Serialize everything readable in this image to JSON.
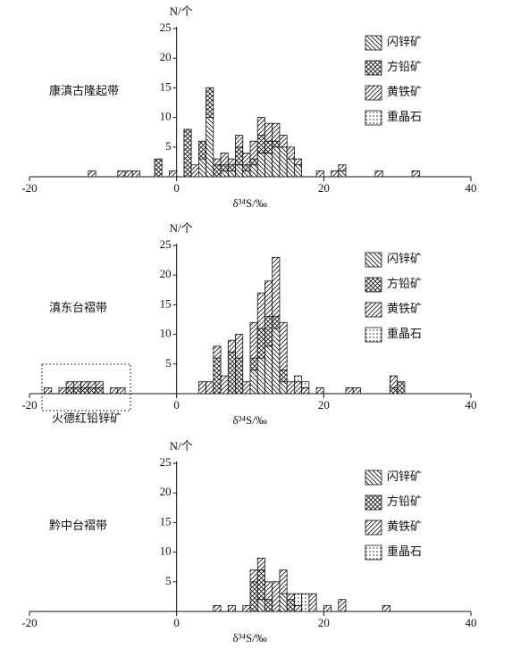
{
  "chart_data": [
    {
      "type": "bar",
      "label": "康滇古隆起带",
      "y_label": "N/个",
      "x_label": "δ³⁴S/‰",
      "xlim": [
        -20,
        40
      ],
      "xticks": [
        -20,
        0,
        20,
        40
      ],
      "ylim": [
        0,
        25
      ],
      "yticks": [
        5,
        10,
        15,
        20,
        25
      ],
      "x": [
        -12,
        -8,
        -7,
        -6,
        -3,
        -1,
        1,
        2,
        3,
        4,
        5,
        6,
        7,
        8,
        9,
        10,
        11,
        12,
        13,
        14,
        15,
        16,
        19,
        21,
        22,
        27,
        32
      ],
      "series": [
        {
          "name": "闪锌矿",
          "pattern": "back-diagonal",
          "values": [
            0,
            0,
            0,
            0,
            0,
            0,
            0,
            0,
            3,
            10,
            0,
            1,
            1,
            2,
            1,
            2,
            4,
            4,
            5,
            5,
            3,
            2,
            0,
            0,
            1,
            0,
            0
          ]
        },
        {
          "name": "方铅矿",
          "pattern": "cross",
          "values": [
            0,
            0,
            0,
            0,
            3,
            0,
            8,
            0,
            3,
            5,
            2,
            1,
            1,
            3,
            1,
            1,
            3,
            2,
            1,
            0,
            0,
            0,
            0,
            0,
            0,
            0,
            0
          ]
        },
        {
          "name": "黄铁矿",
          "pattern": "diagonal",
          "values": [
            1,
            1,
            1,
            1,
            0,
            1,
            0,
            2,
            0,
            0,
            1,
            2,
            1,
            2,
            2,
            3,
            3,
            3,
            3,
            2,
            2,
            1,
            1,
            1,
            1,
            1,
            1
          ]
        },
        {
          "name": "重晶石",
          "pattern": "dots",
          "values": [
            0,
            0,
            0,
            0,
            0,
            0,
            0,
            0,
            0,
            0,
            0,
            0,
            0,
            0,
            0,
            0,
            0,
            0,
            0,
            0,
            0,
            0,
            0,
            0,
            0,
            0,
            0
          ]
        }
      ]
    },
    {
      "type": "bar",
      "label": "滇东台褶带",
      "y_label": "N/个",
      "x_label": "δ³⁴S/‰",
      "annotation": "火德红铅锌矿",
      "xlim": [
        -20,
        40
      ],
      "xticks": [
        -20,
        0,
        20,
        40
      ],
      "ylim": [
        0,
        25
      ],
      "yticks": [
        5,
        10,
        15,
        20,
        25
      ],
      "x": [
        -18,
        -16,
        -15,
        -14,
        -13,
        -12,
        -11,
        -9,
        -8,
        3,
        4,
        5,
        6,
        7,
        8,
        9,
        10,
        11,
        12,
        13,
        14,
        15,
        16,
        17,
        19,
        23,
        24,
        29,
        30
      ],
      "series": [
        {
          "name": "闪锌矿",
          "pattern": "back-diagonal",
          "values": [
            0,
            0,
            0,
            0,
            0,
            0,
            0,
            0,
            0,
            0,
            0,
            0,
            0,
            0,
            0,
            0,
            4,
            6,
            8,
            11,
            2,
            0,
            0,
            0,
            0,
            0,
            0,
            0,
            0
          ]
        },
        {
          "name": "方铅矿",
          "pattern": "cross",
          "values": [
            0,
            0,
            1,
            1,
            1,
            1,
            1,
            0,
            0,
            0,
            0,
            6,
            0,
            7,
            6,
            0,
            2,
            5,
            5,
            2,
            2,
            0,
            0,
            0,
            0,
            0,
            0,
            1,
            2
          ]
        },
        {
          "name": "黄铁矿",
          "pattern": "diagonal",
          "values": [
            1,
            1,
            1,
            1,
            1,
            1,
            1,
            1,
            1,
            2,
            2,
            2,
            3,
            2,
            4,
            2,
            6,
            6,
            6,
            10,
            8,
            2,
            2,
            1,
            1,
            1,
            1,
            2,
            0
          ]
        },
        {
          "name": "重晶石",
          "pattern": "dots",
          "values": [
            0,
            0,
            0,
            0,
            0,
            0,
            0,
            0,
            0,
            0,
            0,
            0,
            0,
            0,
            0,
            0,
            0,
            0,
            0,
            0,
            0,
            0,
            1,
            1,
            0,
            0,
            0,
            0,
            0
          ]
        }
      ]
    },
    {
      "type": "bar",
      "label": "黔中台褶带",
      "y_label": "N/个",
      "x_label": "δ³⁴S/‰",
      "xlim": [
        -20,
        40
      ],
      "xticks": [
        -20,
        0,
        20,
        40
      ],
      "ylim": [
        0,
        25
      ],
      "yticks": [
        5,
        10,
        15,
        20,
        25
      ],
      "x": [
        5,
        7,
        9,
        10,
        11,
        12,
        13,
        14,
        15,
        16,
        17,
        18,
        20,
        22,
        28
      ],
      "series": [
        {
          "name": "闪锌矿",
          "pattern": "back-diagonal",
          "values": [
            0,
            0,
            0,
            0,
            2,
            0,
            0,
            3,
            0,
            0,
            0,
            0,
            0,
            0,
            0
          ]
        },
        {
          "name": "方铅矿",
          "pattern": "cross",
          "values": [
            0,
            0,
            0,
            5,
            5,
            2,
            0,
            0,
            2,
            0,
            0,
            0,
            0,
            0,
            0
          ]
        },
        {
          "name": "黄铁矿",
          "pattern": "diagonal",
          "values": [
            1,
            1,
            1,
            2,
            2,
            3,
            5,
            4,
            1,
            1,
            0,
            3,
            1,
            2,
            1
          ]
        },
        {
          "name": "重晶石",
          "pattern": "dots",
          "values": [
            0,
            0,
            0,
            0,
            0,
            0,
            0,
            0,
            0,
            2,
            3,
            0,
            0,
            0,
            0
          ]
        }
      ]
    }
  ]
}
